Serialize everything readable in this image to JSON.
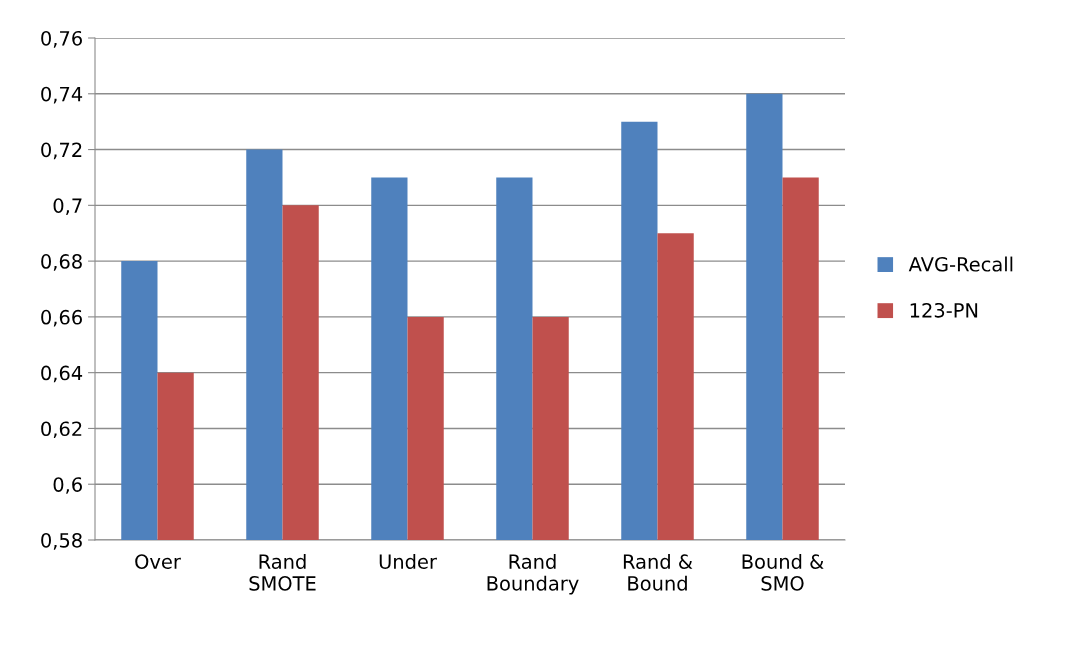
{
  "chart_data": {
    "type": "bar",
    "categories": [
      "Over",
      "Rand\nSMOTE",
      "Under",
      "Rand\nBoundary",
      "Rand &\nBound",
      "Bound &\nSMO"
    ],
    "series": [
      {
        "name": "AVG-Recall",
        "color": "#4f81bd",
        "values": [
          0.68,
          0.72,
          0.71,
          0.71,
          0.73,
          0.74
        ]
      },
      {
        "name": "123-PN",
        "color": "#c0504d",
        "values": [
          0.64,
          0.7,
          0.66,
          0.66,
          0.69,
          0.71
        ]
      }
    ],
    "ylim": [
      0.58,
      0.76
    ],
    "yticks": [
      {
        "value": 0.58,
        "label": "0,58"
      },
      {
        "value": 0.6,
        "label": "0,6"
      },
      {
        "value": 0.62,
        "label": "0,62"
      },
      {
        "value": 0.64,
        "label": "0,64"
      },
      {
        "value": 0.66,
        "label": "0,66"
      },
      {
        "value": 0.68,
        "label": "0,68"
      },
      {
        "value": 0.7,
        "label": "0,7"
      },
      {
        "value": 0.72,
        "label": "0,72"
      },
      {
        "value": 0.74,
        "label": "0,74"
      },
      {
        "value": 0.76,
        "label": "0,76"
      }
    ],
    "grid": "y",
    "legend": "right"
  }
}
